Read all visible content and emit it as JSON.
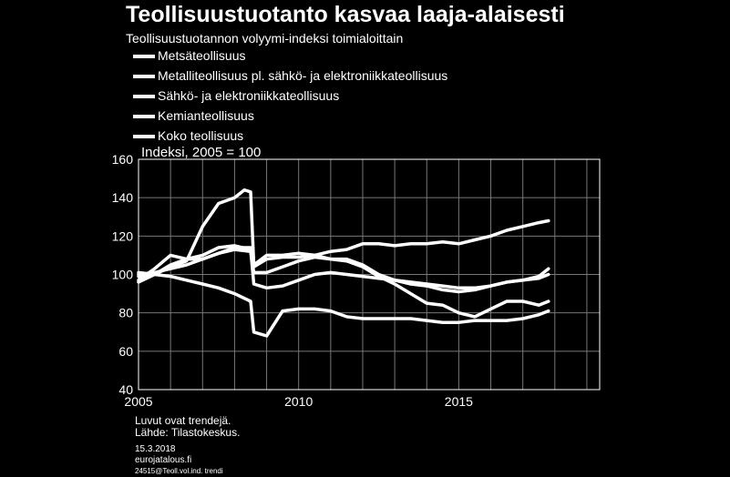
{
  "chart_data": {
    "type": "line",
    "title": "Teollisuustuotanto kasvaa laaja-alaisesti",
    "subtitle": "Teollisuustuotannon volyymi-indeksi toimialoittain",
    "ylabel": "Indeksi, 2005 = 100",
    "xlabel": "",
    "xlim": [
      2005,
      2019.4
    ],
    "ylim": [
      40,
      160
    ],
    "x_ticks": [
      "2005",
      "2010",
      "2015"
    ],
    "y_ticks": [
      "40",
      "60",
      "80",
      "100",
      "120",
      "140",
      "160"
    ],
    "grid": true,
    "legend": "top-left",
    "line_color": "#ffffff",
    "series": [
      {
        "name": "Metsäteollisuus",
        "x": [
          2005,
          2005.5,
          2006,
          2006.5,
          2007,
          2007.5,
          2008,
          2008.5,
          2008.6,
          2009,
          2009.5,
          2010,
          2010.5,
          2011,
          2011.5,
          2012,
          2012.5,
          2013,
          2013.5,
          2014,
          2014.5,
          2015,
          2015.5,
          2016,
          2016.5,
          2017,
          2017.5,
          2017.8
        ],
        "values": [
          101,
          100,
          99,
          97,
          95,
          93,
          90,
          86,
          70,
          68,
          81,
          82,
          82,
          81,
          78,
          77,
          77,
          77,
          77,
          76,
          75,
          75,
          76,
          76,
          76,
          77,
          79,
          81
        ]
      },
      {
        "name": "Metalliteollisuus pl. sähkö- ja elektroniikkateollisuus",
        "x": [
          2005,
          2005.5,
          2006,
          2006.5,
          2007,
          2007.5,
          2008,
          2008.5,
          2008.6,
          2009,
          2009.5,
          2010,
          2010.5,
          2011,
          2011.5,
          2012,
          2012.5,
          2013,
          2013.5,
          2014,
          2014.5,
          2015,
          2015.5,
          2016,
          2016.5,
          2017,
          2017.5,
          2017.8
        ],
        "values": [
          96,
          100,
          105,
          108,
          110,
          114,
          115,
          113,
          95,
          93,
          94,
          97,
          100,
          101,
          100,
          99,
          98,
          97,
          96,
          95,
          94,
          93,
          93,
          94,
          96,
          97,
          99,
          103
        ]
      },
      {
        "name": "Sähkö- ja elektroniikkateollisuus",
        "x": [
          2005,
          2005.5,
          2006,
          2006.5,
          2007,
          2007.5,
          2008,
          2008.3,
          2008.5,
          2008.6,
          2009,
          2009.5,
          2010,
          2010.5,
          2011,
          2011.5,
          2012,
          2012.5,
          2013,
          2013.5,
          2014,
          2014.5,
          2015,
          2015.5,
          2016,
          2016.5,
          2017,
          2017.5,
          2017.8
        ],
        "values": [
          99,
          100,
          104,
          107,
          125,
          137,
          140,
          144,
          143,
          105,
          110,
          110,
          111,
          110,
          108,
          107,
          104,
          99,
          95,
          90,
          85,
          84,
          80,
          78,
          82,
          86,
          86,
          84,
          86
        ]
      },
      {
        "name": "Kemianteollisuus",
        "x": [
          2005,
          2005.5,
          2006,
          2006.5,
          2007,
          2007.5,
          2008,
          2008.5,
          2008.6,
          2009,
          2009.5,
          2010,
          2010.5,
          2011,
          2011.5,
          2012,
          2012.5,
          2013,
          2013.5,
          2014,
          2014.5,
          2015,
          2015.5,
          2016,
          2016.5,
          2017,
          2017.5,
          2017.8
        ],
        "values": [
          97,
          103,
          110,
          108,
          108,
          111,
          114,
          114,
          104,
          108,
          109,
          109,
          110,
          112,
          113,
          116,
          116,
          115,
          116,
          116,
          117,
          116,
          118,
          120,
          123,
          125,
          127,
          128
        ]
      },
      {
        "name": "Koko teollisuus",
        "x": [
          2005,
          2005.5,
          2006,
          2006.5,
          2007,
          2007.5,
          2008,
          2008.5,
          2008.6,
          2009,
          2009.5,
          2010,
          2010.5,
          2011,
          2011.5,
          2012,
          2012.5,
          2013,
          2013.5,
          2014,
          2014.5,
          2015,
          2015.5,
          2016,
          2016.5,
          2017,
          2017.5,
          2017.8
        ],
        "values": [
          100,
          101,
          103,
          105,
          108,
          111,
          113,
          112,
          101,
          101,
          104,
          107,
          109,
          108,
          108,
          105,
          100,
          97,
          95,
          94,
          92,
          91,
          92,
          94,
          96,
          97,
          98,
          100
        ]
      }
    ]
  },
  "footer": {
    "notes": "Luvut ovat trendejä.",
    "source": "Lähde: Tilastokeskus.",
    "date": "15.3.2018",
    "site": "eurojatalous.fi",
    "code": "24515@Teoll.vol.ind. trendi"
  }
}
